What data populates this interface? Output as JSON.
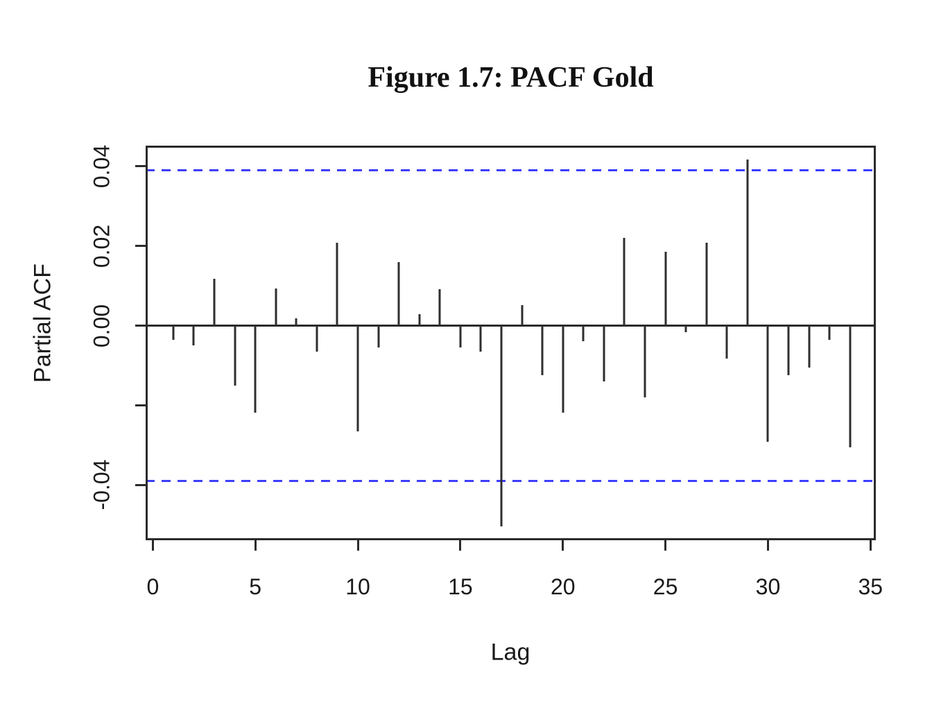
{
  "figure": {
    "background": "#FFFFFF"
  },
  "chart_data": {
    "type": "bar",
    "subtype": "pacf-stick-plot",
    "title": "Figure 1.7: PACF Gold",
    "xlabel": "Lag",
    "ylabel": "Partial ACF",
    "x": [
      1,
      2,
      3,
      4,
      5,
      6,
      7,
      8,
      9,
      10,
      11,
      12,
      13,
      14,
      15,
      16,
      17,
      18,
      19,
      20,
      21,
      22,
      23,
      24,
      25,
      26,
      27,
      28,
      29,
      30,
      31,
      32,
      33,
      34,
      35
    ],
    "values": [
      -0.0036,
      -0.0049,
      0.0118,
      -0.0151,
      -0.0219,
      0.0094,
      0.0018,
      -0.0066,
      0.0209,
      -0.0265,
      -0.0055,
      0.016,
      0.0028,
      0.0092,
      -0.0055,
      -0.0066,
      -0.0505,
      0.0051,
      -0.0125,
      -0.0218,
      -0.0039,
      -0.014,
      0.022,
      -0.0181,
      0.0186,
      -0.0016,
      0.0209,
      -0.0083,
      0.0418,
      -0.0291,
      -0.0124,
      -0.0105,
      -0.0035,
      -0.0306,
      0.0
    ],
    "confidence_bands": {
      "upper": 0.039,
      "lower": -0.039,
      "line_style": "dashed",
      "color": "#3D3DFF"
    },
    "x_ticks": [
      0,
      5,
      10,
      15,
      20,
      25,
      30,
      35
    ],
    "y_ticks": [
      {
        "value": 0.04,
        "label": "0.04"
      },
      {
        "value": 0.02,
        "label": "0.02"
      },
      {
        "value": 0.0,
        "label": "0.00"
      },
      {
        "value": -0.02,
        "label": ""
      },
      {
        "value": -0.04,
        "label": "-0.04"
      }
    ],
    "xlim": [
      -0.35,
      35.26
    ],
    "ylim": [
      -0.0539,
      0.0452
    ],
    "grid": false,
    "legend": false,
    "colors": {
      "bar": "#2e2e2e",
      "axis": "#2b2b2b",
      "text": "#1a1a1a",
      "confidence": "#3D3DFF",
      "background": "#FFFFFF"
    }
  }
}
